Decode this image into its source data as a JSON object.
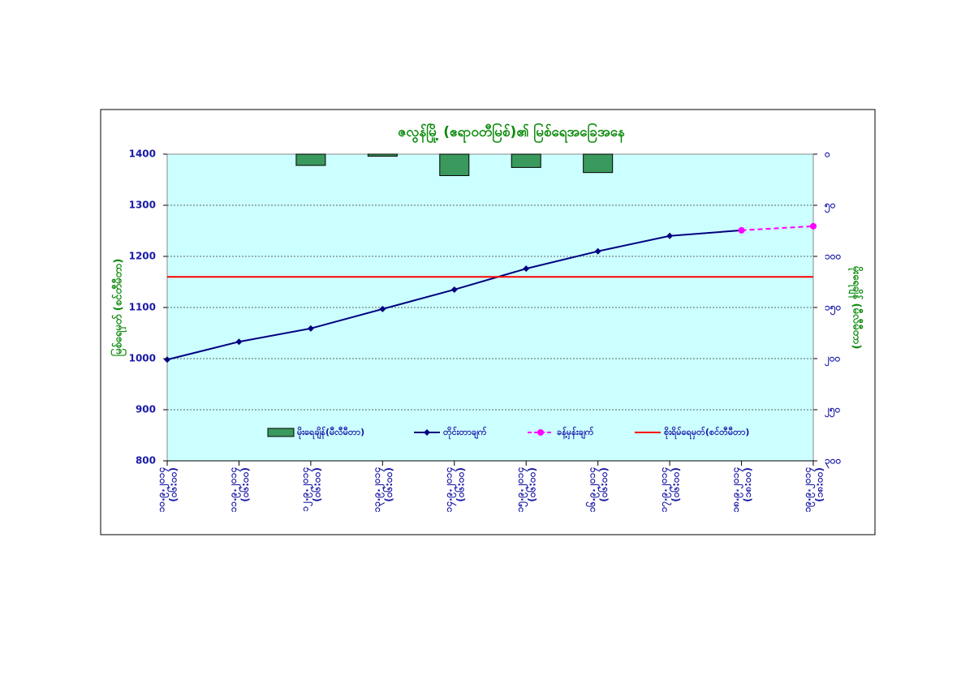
{
  "chart_data": {
    "type": "combo",
    "title": "ဇလွန်မြို့ (ဧရာဝတီမြစ်)၏ မြစ်ရေအခြေအနေ",
    "y_label": "မြစ်ရေမှတ် (စင်တီမီတာ)",
    "y2_label": "မိုးရေချိန် (မီလီမီတာ)",
    "categories": [
      "၁၀.၉.၂၀၁၄",
      "၁၁.၉.၂၀၁၄",
      "၁၂.၉.၂၀၁၄",
      "၁၃.၉.၂၀၁၄",
      "၁၄.၉.၂၀၁၄",
      "၁၅.၉.၂၀၁၄",
      "၁၆.၉.၂၀၁၄",
      "၁၇.၉.၂၀၁၄",
      "၁၈.၉.၂၀၁၄",
      "၁၉.၉.၂၀၁၄"
    ],
    "category_times": [
      "(၀၆:၀၀)",
      "(၀၆:၀၀)",
      "(၀၆:၀၀)",
      "(၀၆:၀၀)",
      "(၀၆:၀၀)",
      "(၀၆:၀၀)",
      "(၀၆:၀၀)",
      "(၀၆:၀၀)",
      "(၁၈:၀၀)",
      "(၁၈:၀၀)"
    ],
    "ylim": [
      800,
      1400
    ],
    "yticks": [
      800,
      900,
      1000,
      1100,
      1200,
      1300,
      1400
    ],
    "y2lim": [
      300,
      0
    ],
    "y2ticks": [
      {
        "value": 0,
        "label": "၀"
      },
      {
        "value": 50,
        "label": "၅၀"
      },
      {
        "value": 100,
        "label": "၁၀၀"
      },
      {
        "value": 150,
        "label": "၁၅၀"
      },
      {
        "value": 200,
        "label": "၂၀၀"
      },
      {
        "value": 250,
        "label": "၂၅၀"
      },
      {
        "value": 300,
        "label": "၃၀၀"
      }
    ],
    "grid": true,
    "plot_background": "#ccffff",
    "series": [
      {
        "name": "မိုးရေချိန်(မီလီမီတာ)",
        "type": "bar",
        "axis": "y2",
        "color": "#3a9a5e",
        "values": [
          null,
          null,
          11,
          2,
          21,
          13,
          18,
          null,
          null,
          null
        ]
      },
      {
        "name": "တိုင်းတာချက်",
        "type": "line",
        "color": "#000080",
        "marker": "diamond",
        "values": [
          998,
          1033,
          1059,
          1097,
          1135,
          1176,
          1210,
          1240,
          1251,
          null
        ]
      },
      {
        "name": "ခန့်မှန်းချက်",
        "type": "line",
        "color": "#ff00ff",
        "marker": "circle",
        "dashed": true,
        "values": [
          null,
          null,
          null,
          null,
          null,
          null,
          null,
          null,
          1251,
          1259
        ]
      },
      {
        "name": "စိုးရိမ်ရေမှတ်(စင်တီမီတာ)",
        "type": "line",
        "color": "#ff0000",
        "values": [
          1160,
          1160,
          1160,
          1160,
          1160,
          1160,
          1160,
          1160,
          1160,
          1160
        ]
      }
    ]
  }
}
